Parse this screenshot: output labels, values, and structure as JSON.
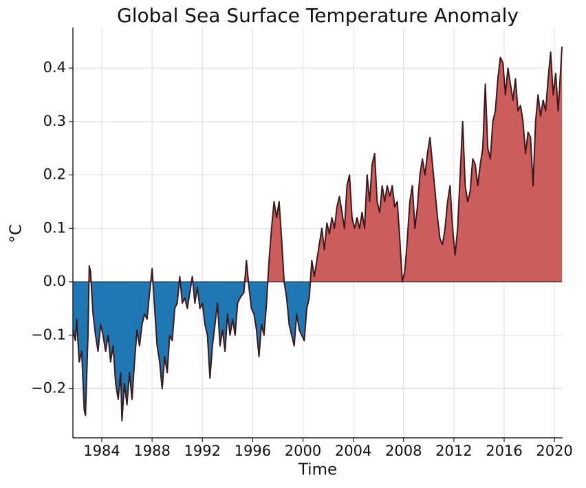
{
  "chart_data": {
    "type": "area",
    "title": "Global Sea Surface Temperature Anomaly",
    "x_label": "Time",
    "y_label": "°C",
    "positive_color": "#cd5c5c",
    "negative_color": "#1f77b4",
    "line_color": "#3a1a1a",
    "grid": true,
    "xlim": [
      1981.7,
      2020.65
    ],
    "ylim": [
      -0.292,
      0.476
    ],
    "xticks": [
      1984,
      1988,
      1992,
      1996,
      2000,
      2004,
      2008,
      2012,
      2016,
      2020
    ],
    "yticks": [
      {
        "value": -0.2,
        "label": "−0.2"
      },
      {
        "value": -0.1,
        "label": "−0.1"
      },
      {
        "value": 0,
        "label": "0.0"
      },
      0.1,
      0.2,
      0.3,
      0.4
    ],
    "x": [
      1981.7,
      1981.9,
      1982.0,
      1982.2,
      1982.4,
      1982.6,
      1982.7,
      1982.9,
      1983.0,
      1983.1,
      1983.3,
      1983.5,
      1983.7,
      1983.9,
      1984.1,
      1984.3,
      1984.5,
      1984.7,
      1984.9,
      1985.1,
      1985.3,
      1985.5,
      1985.6,
      1985.8,
      1986.0,
      1986.2,
      1986.4,
      1986.6,
      1986.8,
      1987.0,
      1987.2,
      1987.4,
      1987.6,
      1987.8,
      1988.0,
      1988.2,
      1988.4,
      1988.6,
      1988.8,
      1989.0,
      1989.2,
      1989.4,
      1989.6,
      1989.8,
      1990.0,
      1990.2,
      1990.4,
      1990.6,
      1990.8,
      1991.0,
      1991.2,
      1991.4,
      1991.6,
      1991.8,
      1992.0,
      1992.2,
      1992.4,
      1992.6,
      1992.8,
      1993.0,
      1993.2,
      1993.4,
      1993.6,
      1993.8,
      1994.0,
      1994.2,
      1994.4,
      1994.6,
      1994.8,
      1995.0,
      1995.3,
      1995.5,
      1995.7,
      1995.9,
      1996.1,
      1996.3,
      1996.5,
      1996.7,
      1996.9,
      1997.1,
      1997.3,
      1997.5,
      1997.7,
      1997.9,
      1998.1,
      1998.3,
      1998.5,
      1998.7,
      1998.9,
      1999.1,
      1999.3,
      1999.5,
      1999.7,
      1999.9,
      2000.1,
      2000.3,
      2000.5,
      2000.7,
      2000.9,
      2001.1,
      2001.3,
      2001.5,
      2001.7,
      2001.9,
      2002.1,
      2002.3,
      2002.5,
      2002.7,
      2002.9,
      2003.1,
      2003.3,
      2003.5,
      2003.7,
      2003.9,
      2004.1,
      2004.3,
      2004.5,
      2004.7,
      2004.9,
      2005.1,
      2005.3,
      2005.5,
      2005.7,
      2005.9,
      2006.1,
      2006.3,
      2006.5,
      2006.7,
      2006.9,
      2007.1,
      2007.3,
      2007.5,
      2007.7,
      2007.9,
      2008.1,
      2008.3,
      2008.5,
      2008.7,
      2008.9,
      2009.1,
      2009.3,
      2009.5,
      2009.7,
      2009.9,
      2010.1,
      2010.3,
      2010.5,
      2010.7,
      2010.9,
      2011.1,
      2011.3,
      2011.5,
      2011.7,
      2011.9,
      2012.1,
      2012.3,
      2012.5,
      2012.7,
      2012.9,
      2013.1,
      2013.3,
      2013.5,
      2013.7,
      2013.9,
      2014.1,
      2014.3,
      2014.5,
      2014.7,
      2014.9,
      2015.1,
      2015.3,
      2015.5,
      2015.7,
      2015.9,
      2016.1,
      2016.3,
      2016.5,
      2016.7,
      2016.9,
      2017.1,
      2017.3,
      2017.5,
      2017.7,
      2017.9,
      2018.1,
      2018.3,
      2018.5,
      2018.7,
      2018.9,
      2019.1,
      2019.3,
      2019.5,
      2019.7,
      2019.9,
      2020.1,
      2020.3,
      2020.6
    ],
    "values": [
      -0.09,
      -0.11,
      -0.07,
      -0.15,
      -0.13,
      -0.24,
      -0.25,
      -0.1,
      0.03,
      0.02,
      -0.06,
      -0.1,
      -0.13,
      -0.08,
      -0.1,
      -0.13,
      -0.1,
      -0.15,
      -0.12,
      -0.19,
      -0.22,
      -0.17,
      -0.26,
      -0.19,
      -0.23,
      -0.17,
      -0.22,
      -0.15,
      -0.09,
      -0.12,
      -0.08,
      -0.06,
      -0.07,
      -0.02,
      0.025,
      -0.05,
      -0.12,
      -0.15,
      -0.2,
      -0.14,
      -0.17,
      -0.1,
      -0.11,
      -0.05,
      -0.04,
      0.01,
      -0.04,
      -0.03,
      -0.05,
      -0.02,
      0.01,
      -0.04,
      -0.01,
      -0.05,
      -0.04,
      -0.08,
      -0.1,
      -0.18,
      -0.12,
      -0.08,
      -0.04,
      -0.12,
      -0.09,
      -0.13,
      -0.06,
      -0.1,
      -0.07,
      -0.1,
      -0.04,
      -0.03,
      -0.02,
      0.04,
      -0.01,
      -0.05,
      -0.06,
      -0.09,
      -0.14,
      -0.08,
      -0.1,
      -0.04,
      0.04,
      0.1,
      0.15,
      0.12,
      0.15,
      0.08,
      0.0,
      -0.03,
      -0.08,
      -0.1,
      -0.12,
      -0.06,
      -0.09,
      -0.1,
      -0.11,
      -0.05,
      -0.03,
      0.04,
      0.01,
      0.04,
      0.07,
      0.1,
      0.06,
      0.11,
      0.09,
      0.12,
      0.1,
      0.14,
      0.16,
      0.13,
      0.1,
      0.18,
      0.2,
      0.12,
      0.1,
      0.12,
      0.1,
      0.13,
      0.1,
      0.2,
      0.15,
      0.22,
      0.24,
      0.15,
      0.13,
      0.18,
      0.15,
      0.18,
      0.16,
      0.18,
      0.14,
      0.15,
      0.08,
      0.0,
      0.02,
      0.08,
      0.15,
      0.18,
      0.1,
      0.14,
      0.2,
      0.23,
      0.2,
      0.24,
      0.27,
      0.22,
      0.17,
      0.12,
      0.08,
      0.07,
      0.1,
      0.15,
      0.18,
      0.1,
      0.05,
      0.1,
      0.2,
      0.3,
      0.18,
      0.15,
      0.17,
      0.23,
      0.22,
      0.18,
      0.22,
      0.25,
      0.37,
      0.25,
      0.23,
      0.3,
      0.32,
      0.38,
      0.42,
      0.41,
      0.35,
      0.4,
      0.37,
      0.34,
      0.38,
      0.32,
      0.33,
      0.3,
      0.24,
      0.28,
      0.27,
      0.18,
      0.3,
      0.35,
      0.31,
      0.34,
      0.32,
      0.38,
      0.43,
      0.35,
      0.39,
      0.32,
      0.44
    ]
  }
}
